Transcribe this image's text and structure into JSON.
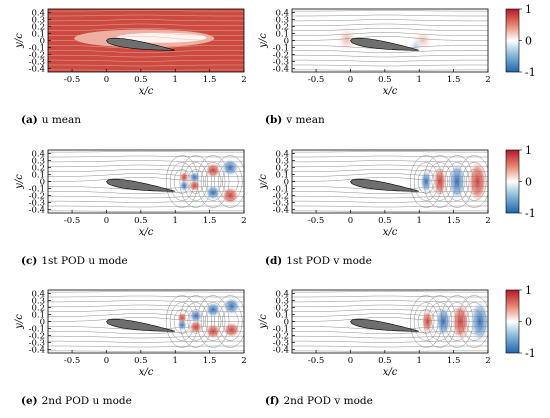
{
  "panels": [
    {
      "id": "a",
      "letter": "(a)",
      "caption": "u mean",
      "field": "u mean"
    },
    {
      "id": "b",
      "letter": "(b)",
      "caption": "v mean",
      "field": "v mean"
    },
    {
      "id": "c",
      "letter": "(c)",
      "caption": "1st POD u mode",
      "field": "POD u"
    },
    {
      "id": "d",
      "letter": "(d)",
      "caption": "1st POD v mode",
      "field": "POD v"
    },
    {
      "id": "e",
      "letter": "(e)",
      "caption": "2nd POD u mode",
      "field": "POD u"
    },
    {
      "id": "f",
      "letter": "(f)",
      "caption": "2nd POD v mode",
      "field": "POD v"
    }
  ],
  "axes": {
    "xlabel": "x/c",
    "ylabel": "y/c",
    "xticks": [
      "-0.5",
      "0",
      "0.5",
      "1",
      "1.5",
      "2"
    ],
    "yticks": [
      "0.4",
      "0.3",
      "0.2",
      "0.1",
      "0",
      "-0.1",
      "-0.2",
      "-0.3",
      "-0.4"
    ],
    "xlim": [
      -0.85,
      2.0
    ],
    "ylim": [
      -0.45,
      0.45
    ]
  },
  "colorbar": {
    "ticks": [
      "1",
      "0",
      "-1"
    ],
    "range": [
      -1,
      1
    ],
    "colors": {
      "max": "#b2182b",
      "mid": "#ffffff",
      "min": "#2166ac"
    }
  },
  "colors": {
    "airfoil": "#6e6e6e",
    "streamline": "#7f7f7f",
    "positive": "#c43c39",
    "negative": "#3b6fb0"
  }
}
